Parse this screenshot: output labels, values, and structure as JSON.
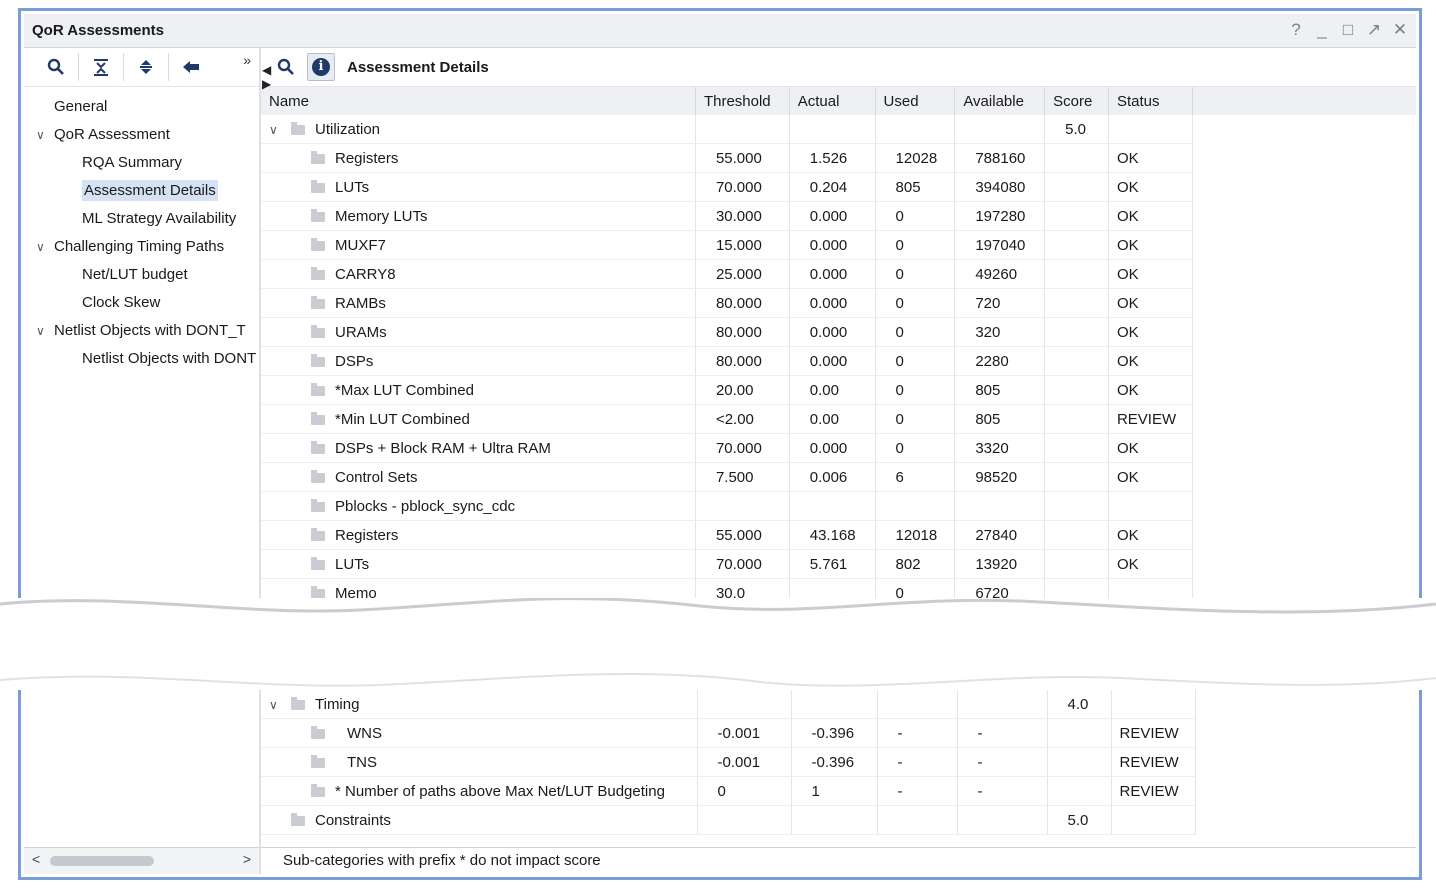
{
  "window": {
    "title": "QoR Assessments",
    "controls": [
      "?",
      "_",
      "□",
      "↗",
      "✕"
    ]
  },
  "left_toolbar": {
    "buttons": [
      "search-icon",
      "collapse-all-icon",
      "expand-all-icon",
      "back-arrow-icon"
    ],
    "more": "»"
  },
  "tree": [
    {
      "label": "General",
      "level": 0,
      "expand": ""
    },
    {
      "label": "QoR Assessment",
      "level": 0,
      "expand": "v"
    },
    {
      "label": "RQA Summary",
      "level": 1
    },
    {
      "label": "Assessment Details",
      "level": 1,
      "selected": true
    },
    {
      "label": "ML Strategy Availability",
      "level": 1
    },
    {
      "label": "Challenging Timing Paths",
      "level": 0,
      "expand": "v"
    },
    {
      "label": "Net/LUT budget",
      "level": 1
    },
    {
      "label": "Clock Skew",
      "level": 1
    },
    {
      "label": "Netlist Objects with DONT_T",
      "level": 0,
      "expand": "v"
    },
    {
      "label": "Netlist Objects with DONT",
      "level": 1
    }
  ],
  "right_toolbar": {
    "title": "Assessment Details"
  },
  "table": {
    "columns": [
      "Name",
      "Threshold",
      "Actual",
      "Used",
      "Available",
      "Score",
      "Status"
    ],
    "rows_top": [
      {
        "name": "Utilization",
        "level": 0,
        "expand": "v",
        "threshold": "",
        "actual": "",
        "used": "",
        "available": "",
        "score": "5.0",
        "status": ""
      },
      {
        "name": "Registers",
        "level": 1,
        "threshold": "55.000",
        "actual": "1.526",
        "used": "12028",
        "available": "788160",
        "score": "",
        "status": "OK"
      },
      {
        "name": "LUTs",
        "level": 1,
        "threshold": "70.000",
        "actual": "0.204",
        "used": "805",
        "available": "394080",
        "score": "",
        "status": "OK"
      },
      {
        "name": "Memory LUTs",
        "level": 1,
        "threshold": "30.000",
        "actual": "0.000",
        "used": "0",
        "available": "197280",
        "score": "",
        "status": "OK"
      },
      {
        "name": "MUXF7",
        "level": 1,
        "threshold": "15.000",
        "actual": "0.000",
        "used": "0",
        "available": "197040",
        "score": "",
        "status": "OK"
      },
      {
        "name": "CARRY8",
        "level": 1,
        "threshold": "25.000",
        "actual": "0.000",
        "used": "0",
        "available": "49260",
        "score": "",
        "status": "OK"
      },
      {
        "name": "RAMBs",
        "level": 1,
        "threshold": "80.000",
        "actual": "0.000",
        "used": "0",
        "available": "720",
        "score": "",
        "status": "OK"
      },
      {
        "name": "URAMs",
        "level": 1,
        "threshold": "80.000",
        "actual": "0.000",
        "used": "0",
        "available": "320",
        "score": "",
        "status": "OK"
      },
      {
        "name": "DSPs",
        "level": 1,
        "threshold": "80.000",
        "actual": "0.000",
        "used": "0",
        "available": "2280",
        "score": "",
        "status": "OK"
      },
      {
        "name": "*Max LUT Combined",
        "level": 1,
        "threshold": "20.00",
        "actual": "0.00",
        "used": "0",
        "available": "805",
        "score": "",
        "status": "OK"
      },
      {
        "name": "*Min LUT Combined",
        "level": 1,
        "threshold": "<2.00",
        "actual": "0.00",
        "used": "0",
        "available": "805",
        "score": "",
        "status": "REVIEW"
      },
      {
        "name": "DSPs + Block RAM + Ultra RAM",
        "level": 1,
        "threshold": "70.000",
        "actual": "0.000",
        "used": "0",
        "available": "3320",
        "score": "",
        "status": "OK"
      },
      {
        "name": "Control Sets",
        "level": 1,
        "threshold": "7.500",
        "actual": "0.006",
        "used": "6",
        "available": "98520",
        "score": "",
        "status": "OK"
      },
      {
        "name": "Pblocks - pblock_sync_cdc",
        "level": 1,
        "threshold": "",
        "actual": "",
        "used": "",
        "available": "",
        "score": "",
        "status": ""
      },
      {
        "name": "Registers",
        "level": 1,
        "threshold": "55.000",
        "actual": "43.168",
        "used": "12018",
        "available": "27840",
        "score": "",
        "status": "OK"
      },
      {
        "name": "LUTs",
        "level": 1,
        "threshold": "70.000",
        "actual": "5.761",
        "used": "802",
        "available": "13920",
        "score": "",
        "status": "OK"
      },
      {
        "name": "Memo",
        "level": 1,
        "threshold": "30.0",
        "actual": "",
        "used": "0",
        "available": "6720",
        "score": "",
        "status": ""
      }
    ],
    "rows_bottom": [
      {
        "name": "Timing",
        "level": 0,
        "expand": "v",
        "threshold": "",
        "actual": "",
        "used": "",
        "available": "",
        "score": "4.0",
        "status": ""
      },
      {
        "name": "WNS",
        "level": 2,
        "threshold": "-0.001",
        "actual": "-0.396",
        "used": "-",
        "available": "-",
        "score": "",
        "status": "REVIEW"
      },
      {
        "name": "TNS",
        "level": 2,
        "threshold": "-0.001",
        "actual": "-0.396",
        "used": "-",
        "available": "-",
        "score": "",
        "status": "REVIEW"
      },
      {
        "name": "* Number of paths above Max Net/LUT Budgeting",
        "level": 1,
        "threshold": "0",
        "actual": "1",
        "used": "-",
        "available": "-",
        "score": "",
        "status": "REVIEW"
      },
      {
        "name": "Constraints",
        "level": 0,
        "expand": "",
        "threshold": "",
        "actual": "",
        "used": "",
        "available": "",
        "score": "5.0",
        "status": ""
      }
    ]
  },
  "footer": {
    "note": "Sub-categories with prefix * do not impact score"
  }
}
